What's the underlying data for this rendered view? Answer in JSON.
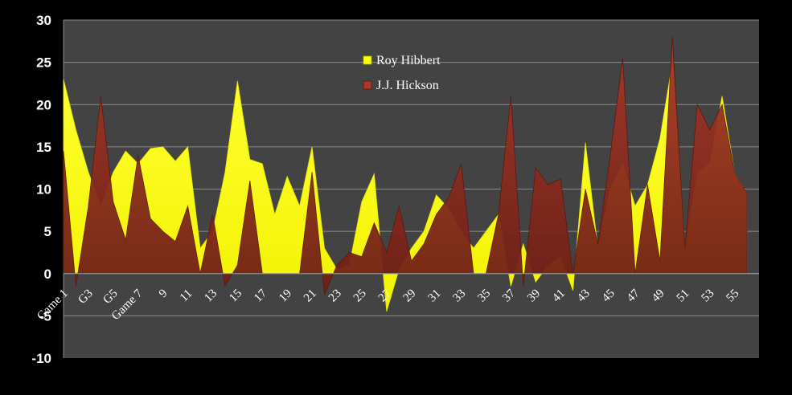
{
  "chart_data": {
    "type": "area",
    "title": "",
    "xlabel": "",
    "ylabel": "",
    "ylim": [
      -10,
      30
    ],
    "yticks": [
      30,
      25,
      20,
      15,
      10,
      5,
      0,
      -5,
      -10
    ],
    "grid": true,
    "legend_position": "top-center",
    "x": [
      1,
      2,
      3,
      4,
      5,
      6,
      7,
      8,
      9,
      10,
      11,
      12,
      13,
      14,
      15,
      16,
      17,
      18,
      19,
      20,
      21,
      22,
      23,
      24,
      25,
      26,
      27,
      28,
      29,
      30,
      31,
      32,
      33,
      34,
      35,
      36,
      37,
      38,
      39,
      40,
      41,
      42,
      43,
      44,
      45,
      46,
      47,
      48,
      49,
      50,
      51,
      52,
      53,
      54,
      55,
      56
    ],
    "x_tick_labels": [
      {
        "x": 1,
        "label": "Game 1"
      },
      {
        "x": 3,
        "label": "G3"
      },
      {
        "x": 5,
        "label": "G5"
      },
      {
        "x": 7,
        "label": "Game 7"
      },
      {
        "x": 9,
        "label": "9"
      },
      {
        "x": 11,
        "label": "11"
      },
      {
        "x": 13,
        "label": "13"
      },
      {
        "x": 15,
        "label": "15"
      },
      {
        "x": 17,
        "label": "17"
      },
      {
        "x": 19,
        "label": "19"
      },
      {
        "x": 21,
        "label": "21"
      },
      {
        "x": 23,
        "label": "23"
      },
      {
        "x": 25,
        "label": "25"
      },
      {
        "x": 27,
        "label": "27"
      },
      {
        "x": 29,
        "label": "29"
      },
      {
        "x": 31,
        "label": "31"
      },
      {
        "x": 33,
        "label": "33"
      },
      {
        "x": 35,
        "label": "35"
      },
      {
        "x": 37,
        "label": "37"
      },
      {
        "x": 39,
        "label": "39"
      },
      {
        "x": 41,
        "label": "41"
      },
      {
        "x": 43,
        "label": "43"
      },
      {
        "x": 45,
        "label": "45"
      },
      {
        "x": 47,
        "label": "47"
      },
      {
        "x": 49,
        "label": "49"
      },
      {
        "x": 51,
        "label": "51"
      },
      {
        "x": 53,
        "label": "53"
      },
      {
        "x": 55,
        "label": "55"
      }
    ],
    "series": [
      {
        "name": "Roy Hibbert",
        "color": "#ffff00",
        "values": [
          23,
          17,
          12,
          8,
          12,
          14.5,
          13,
          14.8,
          15,
          13.3,
          15,
          3,
          5,
          12,
          22.8,
          13.5,
          13,
          7,
          11.5,
          8,
          15,
          3,
          0.5,
          1,
          8.5,
          11.8,
          -4.5,
          0.5,
          3,
          5,
          9.3,
          7.7,
          5,
          3,
          5,
          7,
          -1.5,
          3.5,
          -1,
          1,
          2,
          -2,
          15.5,
          3,
          10,
          13,
          8,
          10.5,
          16,
          25,
          3,
          12,
          13,
          21,
          12,
          9.5
        ]
      },
      {
        "name": "J.J. Hickson",
        "color": "#8b2a1c",
        "values": [
          14.5,
          -1.5,
          8,
          21,
          8.5,
          4,
          14,
          6.5,
          5,
          3.8,
          8,
          0,
          7,
          -1.5,
          1,
          11,
          0,
          0,
          0,
          0,
          12,
          -2.5,
          1,
          2.5,
          2,
          6,
          2.5,
          8,
          1.5,
          3.5,
          7,
          9,
          13,
          0,
          0,
          7,
          21,
          -1.5,
          12.5,
          10.5,
          11.2,
          0,
          10,
          3.5,
          14,
          25.5,
          0,
          10.5,
          1.5,
          28,
          3,
          20,
          17,
          20,
          12,
          9.5
        ]
      }
    ]
  }
}
